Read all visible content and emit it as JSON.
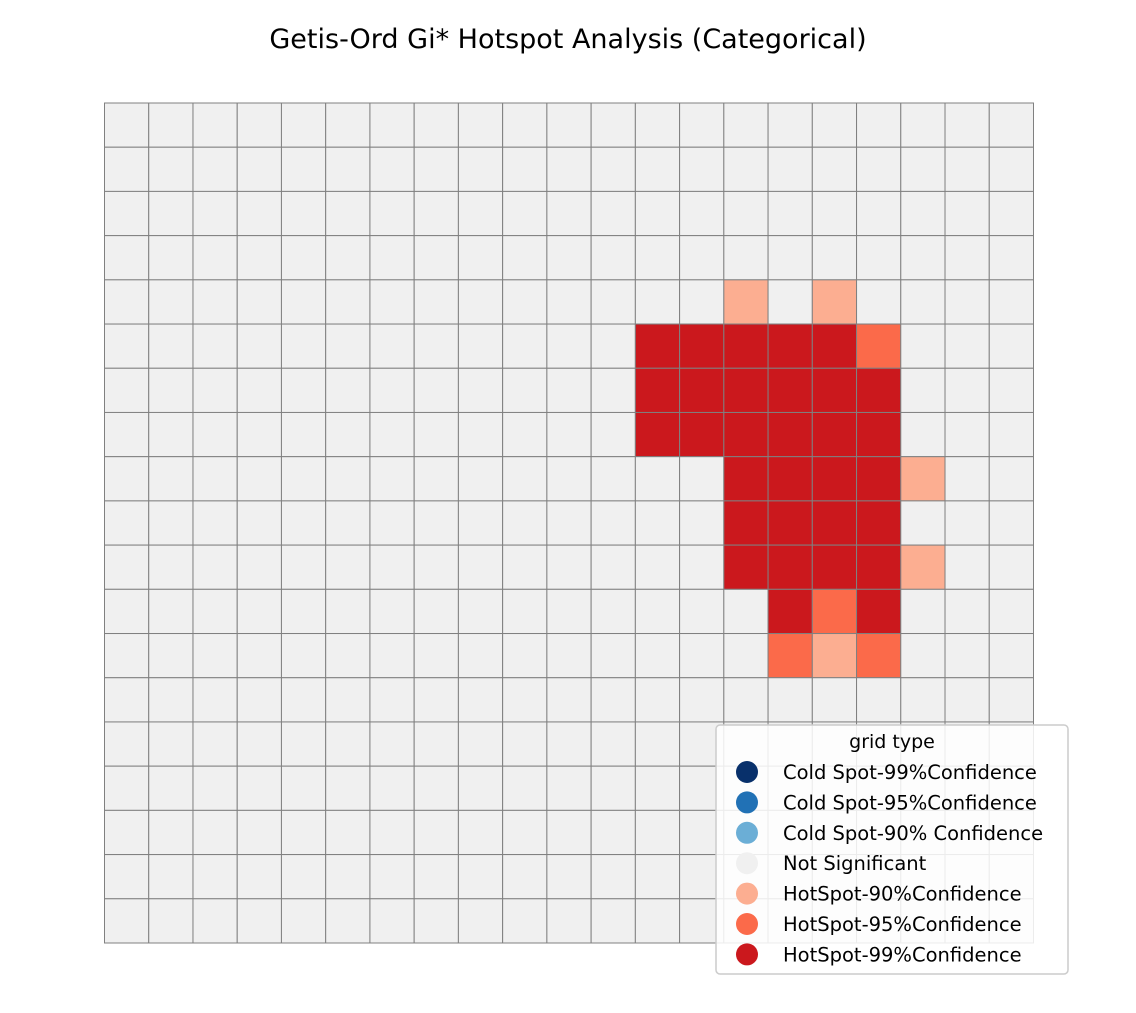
{
  "chart_data": {
    "type": "heatmap",
    "title": "Getis-Ord Gi* Hotspot Analysis (Categorical)",
    "xlabel": "",
    "ylabel": "",
    "grid_size": {
      "rows": 19,
      "cols": 21
    },
    "category_colors": {
      "Cold Spot-99%Confidence": "#08306b",
      "Cold Spot-95%Confidence": "#2171b5",
      "Cold Spot-90% Confidence": "#6baed6",
      "Not Significant": "#f0f0f0",
      "HotSpot-90%Confidence": "#fcae91",
      "HotSpot-95%Confidence": "#fb6a4a",
      "HotSpot-99%Confidence": "#cb181d"
    },
    "cell_border_color": "#808080",
    "default_category": "Not Significant",
    "cells": [
      {
        "row": 4,
        "col": 14,
        "category": "HotSpot-90%Confidence"
      },
      {
        "row": 4,
        "col": 16,
        "category": "HotSpot-90%Confidence"
      },
      {
        "row": 5,
        "col": 12,
        "category": "HotSpot-99%Confidence"
      },
      {
        "row": 5,
        "col": 13,
        "category": "HotSpot-99%Confidence"
      },
      {
        "row": 5,
        "col": 14,
        "category": "HotSpot-99%Confidence"
      },
      {
        "row": 5,
        "col": 15,
        "category": "HotSpot-99%Confidence"
      },
      {
        "row": 5,
        "col": 16,
        "category": "HotSpot-99%Confidence"
      },
      {
        "row": 5,
        "col": 17,
        "category": "HotSpot-95%Confidence"
      },
      {
        "row": 6,
        "col": 12,
        "category": "HotSpot-99%Confidence"
      },
      {
        "row": 6,
        "col": 13,
        "category": "HotSpot-99%Confidence"
      },
      {
        "row": 6,
        "col": 14,
        "category": "HotSpot-99%Confidence"
      },
      {
        "row": 6,
        "col": 15,
        "category": "HotSpot-99%Confidence"
      },
      {
        "row": 6,
        "col": 16,
        "category": "HotSpot-99%Confidence"
      },
      {
        "row": 6,
        "col": 17,
        "category": "HotSpot-99%Confidence"
      },
      {
        "row": 7,
        "col": 12,
        "category": "HotSpot-99%Confidence"
      },
      {
        "row": 7,
        "col": 13,
        "category": "HotSpot-99%Confidence"
      },
      {
        "row": 7,
        "col": 14,
        "category": "HotSpot-99%Confidence"
      },
      {
        "row": 7,
        "col": 15,
        "category": "HotSpot-99%Confidence"
      },
      {
        "row": 7,
        "col": 16,
        "category": "HotSpot-99%Confidence"
      },
      {
        "row": 7,
        "col": 17,
        "category": "HotSpot-99%Confidence"
      },
      {
        "row": 8,
        "col": 14,
        "category": "HotSpot-99%Confidence"
      },
      {
        "row": 8,
        "col": 15,
        "category": "HotSpot-99%Confidence"
      },
      {
        "row": 8,
        "col": 16,
        "category": "HotSpot-99%Confidence"
      },
      {
        "row": 8,
        "col": 17,
        "category": "HotSpot-99%Confidence"
      },
      {
        "row": 8,
        "col": 18,
        "category": "HotSpot-90%Confidence"
      },
      {
        "row": 9,
        "col": 14,
        "category": "HotSpot-99%Confidence"
      },
      {
        "row": 9,
        "col": 15,
        "category": "HotSpot-99%Confidence"
      },
      {
        "row": 9,
        "col": 16,
        "category": "HotSpot-99%Confidence"
      },
      {
        "row": 9,
        "col": 17,
        "category": "HotSpot-99%Confidence"
      },
      {
        "row": 10,
        "col": 14,
        "category": "HotSpot-99%Confidence"
      },
      {
        "row": 10,
        "col": 15,
        "category": "HotSpot-99%Confidence"
      },
      {
        "row": 10,
        "col": 16,
        "category": "HotSpot-99%Confidence"
      },
      {
        "row": 10,
        "col": 17,
        "category": "HotSpot-99%Confidence"
      },
      {
        "row": 10,
        "col": 18,
        "category": "HotSpot-90%Confidence"
      },
      {
        "row": 11,
        "col": 15,
        "category": "HotSpot-99%Confidence"
      },
      {
        "row": 11,
        "col": 16,
        "category": "HotSpot-95%Confidence"
      },
      {
        "row": 11,
        "col": 17,
        "category": "HotSpot-99%Confidence"
      },
      {
        "row": 12,
        "col": 15,
        "category": "HotSpot-95%Confidence"
      },
      {
        "row": 12,
        "col": 16,
        "category": "HotSpot-90%Confidence"
      },
      {
        "row": 12,
        "col": 17,
        "category": "HotSpot-95%Confidence"
      }
    ],
    "legend": {
      "title": "grid type",
      "placement": "lower-right",
      "entries": [
        "Cold Spot-99%Confidence",
        "Cold Spot-95%Confidence",
        "Cold Spot-90% Confidence",
        "Not Significant",
        "HotSpot-90%Confidence",
        "HotSpot-95%Confidence",
        "HotSpot-99%Confidence"
      ]
    }
  }
}
